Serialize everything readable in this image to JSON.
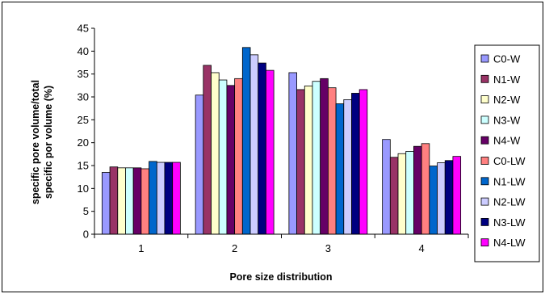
{
  "chart_data": {
    "type": "bar",
    "title": "",
    "xlabel": "Pore size distribution",
    "ylabel_lines": [
      "specific pore volume/total",
      "specific por volume (%)"
    ],
    "categories": [
      "1",
      "2",
      "3",
      "4"
    ],
    "ylim": [
      0,
      45
    ],
    "yticks": [
      "0",
      "5",
      "10",
      "15",
      "20",
      "25",
      "30",
      "35",
      "40",
      "45"
    ],
    "legend_position": "right",
    "grid": false,
    "series": [
      {
        "name": "C0-W",
        "color": "#9999ff",
        "values": [
          13.5,
          30.4,
          35.3,
          20.7
        ]
      },
      {
        "name": "N1-W",
        "color": "#993366",
        "values": [
          14.7,
          36.9,
          31.6,
          16.8
        ]
      },
      {
        "name": "N2-W",
        "color": "#ffffcc",
        "values": [
          14.5,
          35.3,
          32.4,
          17.6
        ]
      },
      {
        "name": "N3-W",
        "color": "#ccffff",
        "values": [
          14.5,
          33.7,
          33.4,
          18.1
        ]
      },
      {
        "name": "N4-W",
        "color": "#660066",
        "values": [
          14.5,
          32.5,
          34.0,
          19.2
        ]
      },
      {
        "name": "C0-LW",
        "color": "#ff8080",
        "values": [
          14.3,
          34.0,
          32.0,
          19.8
        ]
      },
      {
        "name": "N1-LW",
        "color": "#0066cc",
        "values": [
          15.9,
          40.8,
          28.5,
          14.9
        ]
      },
      {
        "name": "N2-LW",
        "color": "#ccccff",
        "values": [
          15.7,
          39.2,
          29.4,
          15.6
        ]
      },
      {
        "name": "N3-LW",
        "color": "#000080",
        "values": [
          15.7,
          37.4,
          30.8,
          16.1
        ]
      },
      {
        "name": "N4-LW",
        "color": "#ff00ff",
        "values": [
          15.7,
          35.8,
          31.6,
          17.0
        ]
      }
    ]
  }
}
